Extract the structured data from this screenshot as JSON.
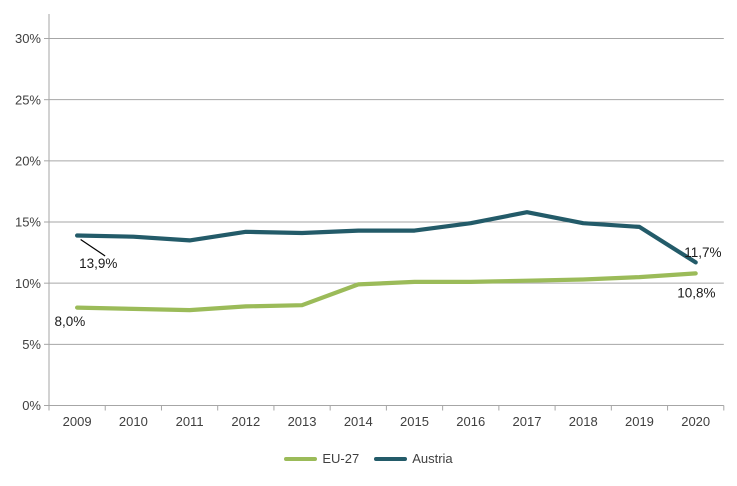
{
  "chart_data": {
    "type": "line",
    "x": [
      2009,
      2010,
      2011,
      2012,
      2013,
      2014,
      2015,
      2016,
      2017,
      2018,
      2019,
      2020
    ],
    "series": [
      {
        "name": "EU-27",
        "color": "#9BBB59",
        "values": [
          8.0,
          7.9,
          7.8,
          8.1,
          8.2,
          9.9,
          10.1,
          10.1,
          10.2,
          10.3,
          10.5,
          10.8
        ]
      },
      {
        "name": "Austria",
        "color": "#235B69",
        "values": [
          13.9,
          13.8,
          13.5,
          14.2,
          14.1,
          14.3,
          14.3,
          14.9,
          15.8,
          14.9,
          14.6,
          11.7
        ]
      }
    ],
    "title": "",
    "xlabel": "",
    "ylabel": "",
    "ylim": [
      0,
      32
    ],
    "y_tick_step": 5,
    "y_tick_labels": [
      "0%",
      "5%",
      "10%",
      "15%",
      "20%",
      "25%",
      "30%"
    ],
    "grid": "horizontal",
    "gridline_color": "#A6A6A6",
    "axis_label_color": "#404040",
    "background_color": "#FFFFFF",
    "legend_position": "bottom",
    "annotations": [
      {
        "text": "13,9%",
        "series": "Austria",
        "x": 2009,
        "leader": true
      },
      {
        "text": "8,0%",
        "series": "EU-27",
        "x": 2009,
        "leader": false
      },
      {
        "text": "11,7%",
        "series": "Austria",
        "x": 2020,
        "leader": false
      },
      {
        "text": "10,8%",
        "series": "EU-27",
        "x": 2020,
        "leader": false
      }
    ]
  }
}
